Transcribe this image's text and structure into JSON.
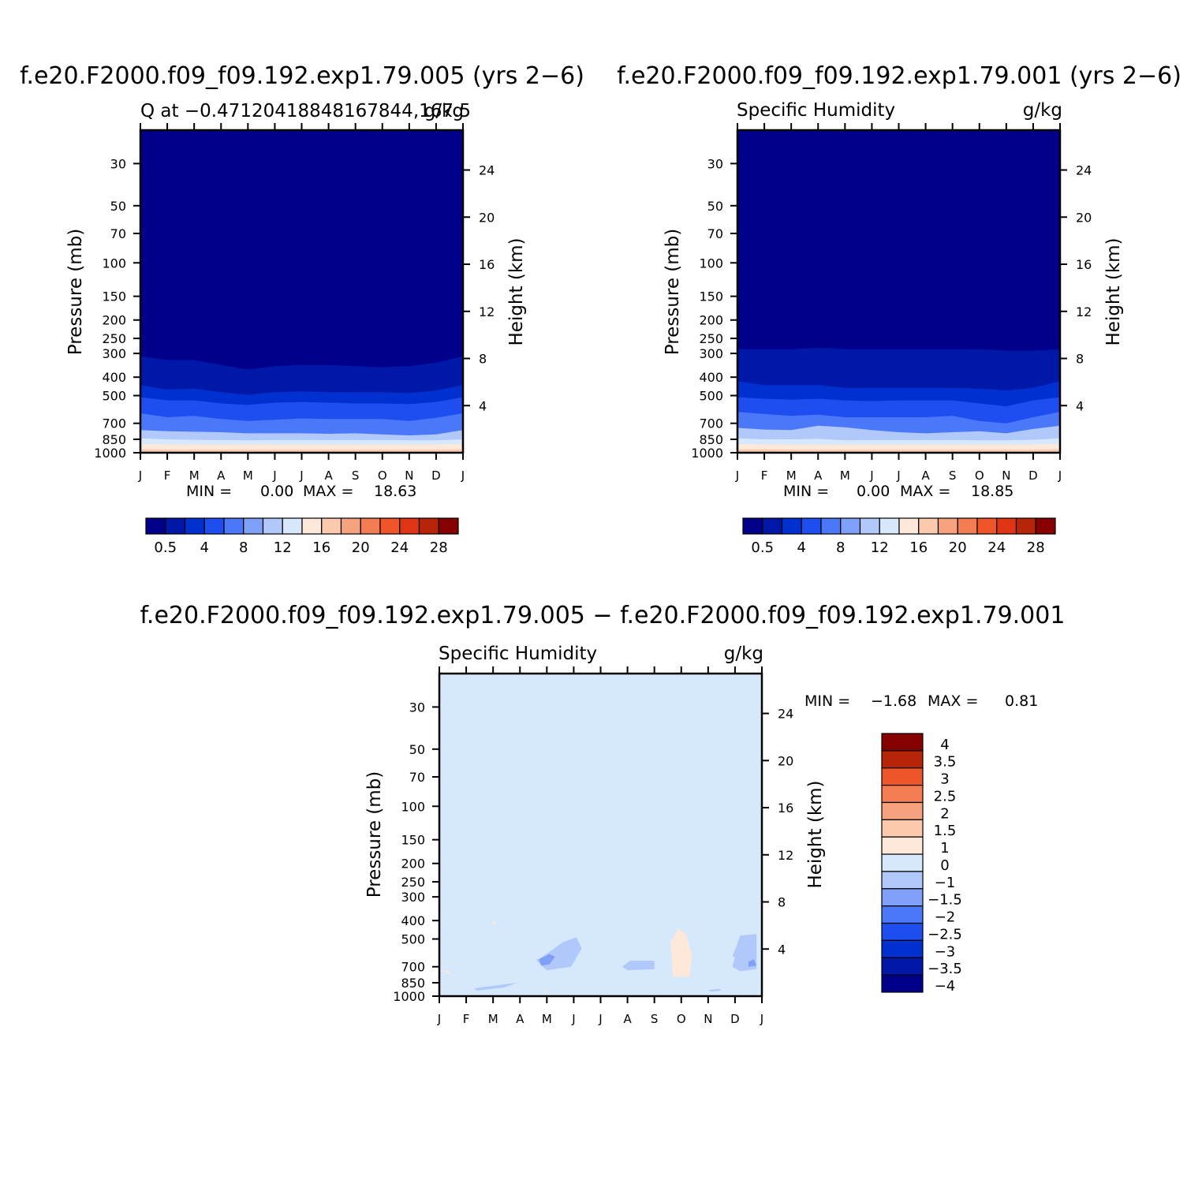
{
  "colors": {
    "abs_levels": [
      "#00008b",
      "#0018a8",
      "#0030d0",
      "#1e4ef0",
      "#4a78f8",
      "#7ea0f8",
      "#b0c8fa",
      "#d8e8fc",
      "#fde8da",
      "#fbcaad",
      "#f7a27f",
      "#f47c52",
      "#ee5528",
      "#e03515",
      "#b82408",
      "#870000"
    ],
    "diff_levels": [
      "#00008b",
      "#0018a8",
      "#0030d0",
      "#1e4ef0",
      "#4a78f8",
      "#7ea0f8",
      "#b0c8fa",
      "#d8e8fc",
      "#fde8da",
      "#fbcaad",
      "#f7a27f",
      "#f47c52",
      "#ee5528",
      "#b82408",
      "#870000"
    ],
    "frame": "#000000"
  },
  "chart_data": [
    {
      "type": "heatmap",
      "case_title": "f.e20.F2000.f09_f09.192.exp1.79.005 (yrs 2−6)",
      "left_label": "Q at −0.47120418848167844,167.5",
      "right_label": "g/kg",
      "xlabel": "",
      "ylabel": "Pressure (mb)",
      "y2label": "Height (km)",
      "x_ticks": [
        "J",
        "F",
        "M",
        "A",
        "M",
        "J",
        "J",
        "A",
        "S",
        "O",
        "N",
        "D",
        "J"
      ],
      "y_ticks": [
        "30",
        "50",
        "70",
        "100",
        "150",
        "200",
        "250",
        "300",
        "400",
        "500",
        "700",
        "850",
        "1000"
      ],
      "y2_ticks": [
        "24",
        "20",
        "16",
        "12",
        "8",
        "4"
      ],
      "stats": {
        "min_label": "MIN =",
        "min": "0.00",
        "max_label": "MAX =",
        "max": "18.63"
      },
      "colorbar": {
        "labels": [
          "0.5",
          "4",
          "8",
          "12",
          "16",
          "20",
          "24",
          "28"
        ]
      },
      "contour_boundaries_mb": [
        [
          310,
          325,
          325,
          345,
          365,
          350,
          345,
          345,
          350,
          355,
          350,
          335,
          310
        ],
        [
          440,
          465,
          460,
          480,
          495,
          480,
          475,
          480,
          480,
          480,
          485,
          470,
          440
        ],
        [
          510,
          530,
          530,
          550,
          560,
          545,
          540,
          545,
          550,
          550,
          555,
          540,
          510
        ],
        [
          620,
          650,
          640,
          665,
          680,
          670,
          660,
          665,
          665,
          665,
          680,
          655,
          620
        ],
        [
          760,
          770,
          775,
          780,
          790,
          790,
          790,
          795,
          790,
          800,
          810,
          800,
          760
        ],
        [
          840,
          850,
          855,
          858,
          860,
          858,
          858,
          858,
          858,
          858,
          860,
          860,
          850
        ],
        [
          900,
          905,
          905,
          905,
          905,
          905,
          905,
          905,
          905,
          905,
          905,
          905,
          900
        ],
        [
          960,
          965,
          965,
          965,
          965,
          965,
          965,
          965,
          965,
          965,
          965,
          965,
          960
        ]
      ]
    },
    {
      "type": "heatmap",
      "case_title": "f.e20.F2000.f09_f09.192.exp1.79.001 (yrs 2−6)",
      "left_label": "Specific Humidity",
      "right_label": "g/kg",
      "xlabel": "",
      "ylabel": "Pressure (mb)",
      "y2label": "Height (km)",
      "x_ticks": [
        "J",
        "F",
        "M",
        "A",
        "M",
        "J",
        "J",
        "A",
        "S",
        "O",
        "N",
        "D",
        "J"
      ],
      "y_ticks": [
        "30",
        "50",
        "70",
        "100",
        "150",
        "200",
        "250",
        "300",
        "400",
        "500",
        "700",
        "850",
        "1000"
      ],
      "y2_ticks": [
        "24",
        "20",
        "16",
        "12",
        "8",
        "4"
      ],
      "stats": {
        "min_label": "MIN =",
        "min": "0.00",
        "max_label": "MAX =",
        "max": "18.85"
      },
      "colorbar": {
        "labels": [
          "0.5",
          "4",
          "8",
          "12",
          "16",
          "20",
          "24",
          "28"
        ]
      },
      "contour_boundaries_mb": [
        [
          285,
          285,
          285,
          280,
          285,
          285,
          285,
          285,
          285,
          285,
          290,
          290,
          285
        ],
        [
          420,
          440,
          440,
          440,
          455,
          455,
          455,
          455,
          455,
          460,
          470,
          455,
          420
        ],
        [
          510,
          520,
          525,
          520,
          530,
          535,
          530,
          530,
          530,
          550,
          570,
          530,
          510
        ],
        [
          610,
          625,
          640,
          630,
          650,
          650,
          650,
          650,
          640,
          680,
          700,
          650,
          610
        ],
        [
          740,
          755,
          760,
          720,
          735,
          760,
          780,
          790,
          780,
          770,
          790,
          750,
          720
        ],
        [
          840,
          850,
          850,
          845,
          860,
          858,
          858,
          858,
          858,
          860,
          860,
          855,
          840
        ],
        [
          900,
          905,
          905,
          905,
          905,
          905,
          905,
          905,
          905,
          905,
          905,
          905,
          900
        ],
        [
          960,
          960,
          965,
          965,
          965,
          965,
          965,
          965,
          965,
          965,
          965,
          965,
          960
        ]
      ]
    },
    {
      "type": "heatmap",
      "case_title": "f.e20.F2000.f09_f09.192.exp1.79.005 − f.e20.F2000.f09_f09.192.exp1.79.001",
      "left_label": "Specific Humidity",
      "right_label": "g/kg",
      "xlabel": "",
      "ylabel": "Pressure (mb)",
      "y2label": "Height (km)",
      "x_ticks": [
        "J",
        "F",
        "M",
        "A",
        "M",
        "J",
        "J",
        "A",
        "S",
        "O",
        "N",
        "D",
        "J"
      ],
      "y_ticks": [
        "30",
        "50",
        "70",
        "100",
        "150",
        "200",
        "250",
        "300",
        "400",
        "500",
        "700",
        "850",
        "1000"
      ],
      "y2_ticks": [
        "24",
        "20",
        "16",
        "12",
        "8",
        "4"
      ],
      "stats": {
        "min_label": "MIN =",
        "min": "−1.68",
        "max_label": "MAX =",
        "max": "0.81"
      },
      "colorbar": {
        "labels": [
          "4",
          "3.5",
          "3",
          "2.5",
          "2",
          "1.5",
          "1",
          "0",
          "−1",
          "−1.5",
          "−2",
          "−2.5",
          "−3",
          "−3.5",
          "−4"
        ]
      },
      "features": [
        {
          "level": "neg_1",
          "month": [
            3.7,
            4.6,
            5.1,
            5.3,
            4.9,
            4.0,
            3.8,
            3.5,
            3.6
          ],
          "mb": [
            640,
            520,
            490,
            560,
            700,
            730,
            690,
            620,
            640
          ]
        },
        {
          "level": "neg_1",
          "month": [
            1.3,
            2.6,
            2.9,
            2.4,
            1.4,
            1.3
          ],
          "mb": [
            910,
            860,
            850,
            900,
            935,
            910
          ]
        },
        {
          "level": "neg_1",
          "month": [
            6.8,
            7.1,
            8.0,
            8.0,
            7.0,
            6.8
          ],
          "mb": [
            700,
            650,
            650,
            720,
            730,
            700
          ]
        },
        {
          "level": "neg_1",
          "month": [
            10.9,
            11.2,
            11.8,
            11.8,
            11.2,
            10.9,
            11.0
          ],
          "mb": [
            620,
            480,
            470,
            720,
            740,
            700,
            620
          ]
        },
        {
          "level": "neg_1",
          "month": [
            10.0,
            10.4,
            10.5,
            10.1,
            10.0
          ],
          "mb": [
            930,
            915,
            935,
            945,
            930
          ]
        },
        {
          "level": "neg_1_5",
          "month": [
            3.7,
            4.1,
            4.3,
            4.1,
            3.8,
            3.7
          ],
          "mb": [
            640,
            600,
            620,
            680,
            690,
            640
          ]
        },
        {
          "level": "neg_1_5",
          "month": [
            11.5,
            11.7,
            11.8,
            11.5,
            11.5
          ],
          "mb": [
            660,
            640,
            690,
            700,
            660
          ]
        },
        {
          "level": "pos_0",
          "month": [
            8.6,
            8.9,
            9.2,
            9.4,
            9.3,
            8.7,
            8.6
          ],
          "mb": [
            520,
            440,
            480,
            620,
            790,
            790,
            520
          ]
        },
        {
          "level": "pos_0",
          "month": [
            1.95,
            2.05,
            2.1,
            1.95
          ],
          "mb": [
            410,
            395,
            420,
            410
          ]
        },
        {
          "level": "pos_0",
          "month": [
            3.7,
            4.2,
            4.0,
            3.7
          ],
          "mb": [
            950,
            945,
            955,
            950
          ]
        },
        {
          "level": "pos_0",
          "month": [
            -0.1,
            0.4,
            0.4,
            -0.1
          ],
          "mb": [
            730,
            740,
            760,
            730
          ]
        }
      ]
    }
  ]
}
